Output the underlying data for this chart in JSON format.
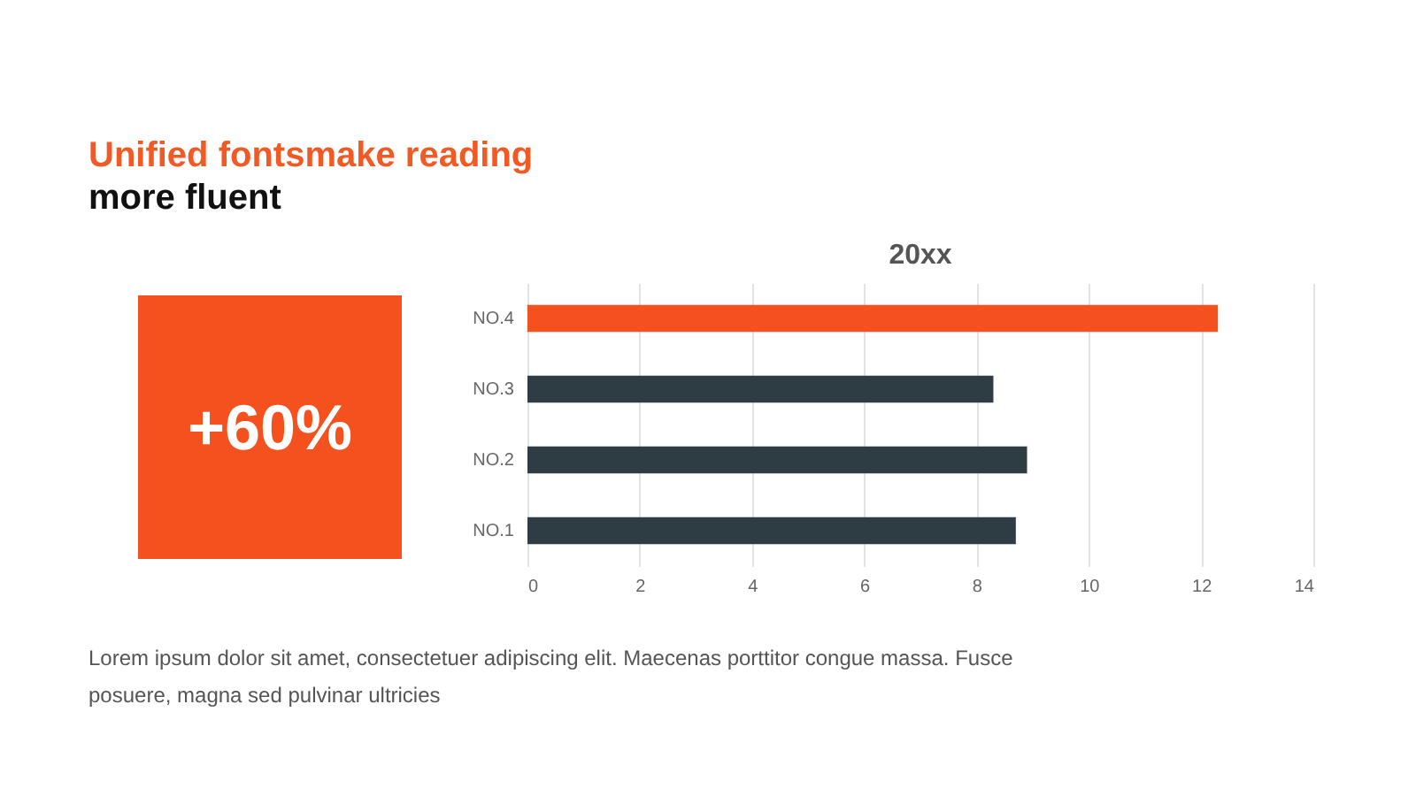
{
  "chart_data": {
    "type": "bar",
    "orientation": "horizontal",
    "title": "20xx",
    "categories": [
      "NO.4",
      "NO.3",
      "NO.2",
      "NO.1"
    ],
    "values": [
      12.3,
      8.3,
      8.9,
      8.7
    ],
    "colors": [
      "#f4511e",
      "#2e3c43",
      "#2e3c43",
      "#2e3c43"
    ],
    "xlim": [
      0,
      14
    ],
    "xticks": [
      0,
      2,
      4,
      6,
      8,
      10,
      12,
      14
    ],
    "grid": "x",
    "annotations": [
      "Unified fontsmake reading",
      "more fluent",
      "+60%",
      "Lorem ipsum dolor sit amet, consectetuer adipiscing elit. Maecenas porttitor congue massa. Fusce posuere, magna sed pulvinar ultricies"
    ]
  }
}
